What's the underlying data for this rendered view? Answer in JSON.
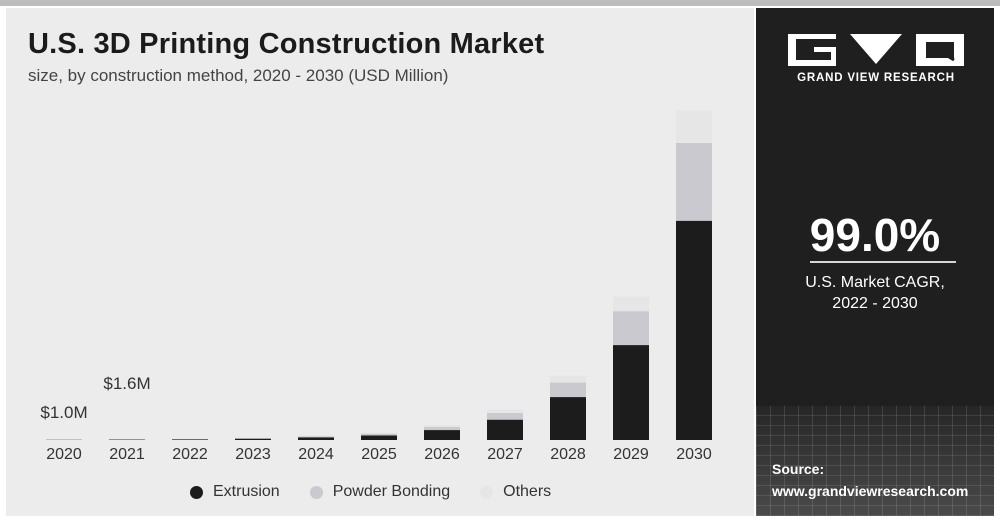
{
  "chart_data": {
    "type": "bar",
    "stacked": true,
    "title": "U.S. 3D Printing Construction Market",
    "subtitle": "size, by construction method, 2020 - 2030 (USD Million)",
    "xlabel": "",
    "ylabel": "",
    "categories": [
      "2020",
      "2021",
      "2022",
      "2023",
      "2024",
      "2025",
      "2026",
      "2027",
      "2028",
      "2029",
      "2030"
    ],
    "series": [
      {
        "name": "Extrusion",
        "color": "#1c1c1c",
        "values": [
          0.6,
          1.0,
          1.5,
          3,
          6,
          10,
          22,
          45,
          95,
          210,
          485
        ]
      },
      {
        "name": "Powder Bonding",
        "color": "#c9c9cf",
        "values": [
          0.2,
          0.3,
          0.5,
          1,
          2,
          4,
          7,
          15,
          32,
          75,
          172
        ]
      },
      {
        "name": "Others",
        "color": "#e6e6e6",
        "values": [
          0.2,
          0.3,
          0.4,
          1,
          1.5,
          2,
          4,
          8,
          15,
          32,
          72
        ]
      }
    ],
    "data_labels": [
      {
        "category": "2020",
        "text": "$1.0M"
      },
      {
        "category": "2021",
        "text": "$1.6M"
      }
    ],
    "ylim": [
      0,
      730
    ],
    "grid": false,
    "legend": "bottom"
  },
  "sidebar": {
    "brand": "GRAND VIEW RESEARCH",
    "cagr_value": "99.0%",
    "cagr_label_line1": "U.S. Market CAGR,",
    "cagr_label_line2": "2022 - 2030",
    "source_label": "Source:",
    "source_url": "www.grandviewresearch.com"
  }
}
